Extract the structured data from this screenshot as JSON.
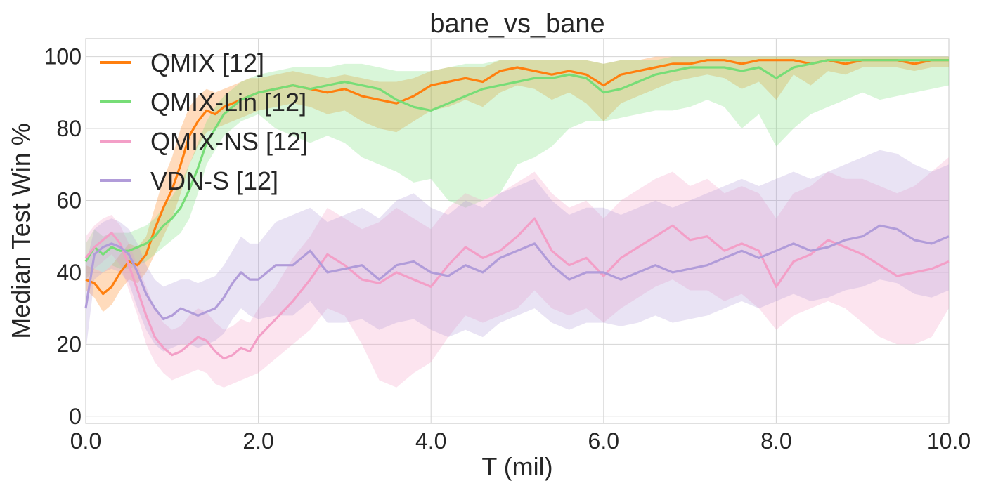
{
  "chart_data": {
    "type": "line",
    "title": "bane_vs_bane",
    "xlabel": "T (mil)",
    "ylabel": "Median Test Win %",
    "xlim": [
      0,
      10
    ],
    "ylim": [
      -2,
      105
    ],
    "xticks": [
      0,
      2,
      4,
      6,
      8,
      10
    ],
    "xtick_labels": [
      "0.0",
      "2.0",
      "4.0",
      "6.0",
      "8.0",
      "10.0"
    ],
    "yticks": [
      0,
      20,
      40,
      60,
      80,
      100
    ],
    "ytick_labels": [
      "0",
      "20",
      "40",
      "60",
      "80",
      "100"
    ],
    "grid": true,
    "legend_position": "top-left",
    "series": [
      {
        "name": "QMIX [12]",
        "color": "#ff7f0e",
        "x": [
          0,
          0.1,
          0.2,
          0.3,
          0.4,
          0.5,
          0.6,
          0.7,
          0.8,
          0.9,
          1.0,
          1.1,
          1.2,
          1.3,
          1.4,
          1.5,
          1.6,
          1.7,
          1.8,
          1.9,
          2.0,
          2.2,
          2.4,
          2.6,
          2.8,
          3.0,
          3.2,
          3.4,
          3.6,
          3.8,
          4.0,
          4.2,
          4.4,
          4.6,
          4.8,
          5.0,
          5.2,
          5.4,
          5.6,
          5.8,
          6.0,
          6.2,
          6.4,
          6.6,
          6.8,
          7.0,
          7.2,
          7.4,
          7.6,
          7.8,
          8.0,
          8.2,
          8.4,
          8.6,
          8.8,
          9.0,
          9.2,
          9.4,
          9.6,
          9.8,
          10.0
        ],
        "y": [
          38,
          37,
          34,
          36,
          40,
          43,
          42,
          45,
          52,
          58,
          63,
          70,
          78,
          82,
          85,
          84,
          86,
          87,
          88,
          89,
          90,
          91,
          92,
          91,
          90,
          91,
          89,
          88,
          87,
          89,
          92,
          93,
          94,
          93,
          96,
          97,
          96,
          95,
          96,
          95,
          92,
          95,
          96,
          97,
          98,
          98,
          99,
          99,
          98,
          99,
          99,
          99,
          98,
          99,
          98,
          99,
          99,
          99,
          98,
          99,
          99
        ],
        "lower": [
          35,
          33,
          29,
          31,
          35,
          38,
          37,
          40,
          45,
          50,
          55,
          62,
          70,
          75,
          79,
          80,
          81,
          82,
          83,
          84,
          85,
          86,
          87,
          86,
          84,
          85,
          82,
          80,
          79,
          82,
          85,
          86,
          88,
          86,
          90,
          92,
          91,
          88,
          90,
          87,
          82,
          87,
          89,
          91,
          93,
          94,
          95,
          94,
          91,
          93,
          88,
          95,
          92,
          96,
          95,
          97,
          97,
          97,
          96,
          97,
          97
        ],
        "upper": [
          42,
          41,
          40,
          42,
          45,
          48,
          47,
          50,
          58,
          66,
          72,
          80,
          86,
          89,
          91,
          90,
          91,
          92,
          93,
          94,
          94,
          95,
          96,
          95,
          94,
          95,
          94,
          93,
          93,
          94,
          96,
          97,
          97,
          97,
          99,
          99,
          99,
          99,
          99,
          99,
          98,
          99,
          99,
          100,
          100,
          100,
          100,
          100,
          100,
          100,
          100,
          100,
          100,
          100,
          100,
          100,
          100,
          100,
          100,
          100,
          100
        ]
      },
      {
        "name": "QMIX-Lin [12]",
        "color": "#77dd77",
        "x": [
          0,
          0.1,
          0.2,
          0.3,
          0.4,
          0.5,
          0.6,
          0.7,
          0.8,
          0.9,
          1.0,
          1.1,
          1.2,
          1.3,
          1.4,
          1.5,
          1.6,
          1.7,
          1.8,
          1.9,
          2.0,
          2.2,
          2.4,
          2.6,
          2.8,
          3.0,
          3.2,
          3.4,
          3.6,
          3.8,
          4.0,
          4.2,
          4.4,
          4.6,
          4.8,
          5.0,
          5.2,
          5.4,
          5.6,
          5.8,
          6.0,
          6.2,
          6.4,
          6.6,
          6.8,
          7.0,
          7.2,
          7.4,
          7.6,
          7.8,
          8.0,
          8.2,
          8.4,
          8.6,
          8.8,
          9.0,
          9.2,
          9.4,
          9.6,
          9.8,
          10.0
        ],
        "y": [
          43,
          47,
          45,
          47,
          46,
          46,
          47,
          48,
          50,
          53,
          55,
          58,
          63,
          69,
          76,
          80,
          84,
          86,
          88,
          89,
          90,
          91,
          92,
          91,
          92,
          93,
          92,
          91,
          88,
          86,
          85,
          87,
          89,
          91,
          92,
          93,
          94,
          94,
          95,
          94,
          90,
          91,
          93,
          95,
          96,
          97,
          97,
          97,
          96,
          97,
          94,
          97,
          98,
          99,
          99,
          99,
          99,
          99,
          99,
          99,
          99
        ],
        "lower": [
          38,
          41,
          40,
          42,
          41,
          41,
          42,
          43,
          45,
          47,
          49,
          51,
          55,
          62,
          70,
          74,
          78,
          80,
          82,
          83,
          84,
          80,
          78,
          76,
          78,
          76,
          72,
          70,
          68,
          65,
          66,
          60,
          58,
          60,
          62,
          70,
          72,
          75,
          80,
          82,
          82,
          83,
          84,
          85,
          85,
          86,
          88,
          86,
          80,
          84,
          75,
          80,
          84,
          86,
          88,
          90,
          88,
          89,
          90,
          91,
          92
        ],
        "upper": [
          48,
          52,
          50,
          51,
          51,
          51,
          52,
          53,
          55,
          58,
          61,
          65,
          70,
          76,
          82,
          86,
          89,
          91,
          93,
          94,
          95,
          96,
          97,
          97,
          97,
          98,
          98,
          97,
          96,
          96,
          96,
          97,
          98,
          98,
          99,
          99,
          99,
          99,
          99,
          99,
          98,
          99,
          99,
          99,
          100,
          100,
          100,
          100,
          100,
          100,
          100,
          100,
          100,
          100,
          100,
          100,
          100,
          100,
          100,
          100,
          100
        ]
      },
      {
        "name": "QMIX-NS [12]",
        "color": "#f39fc7",
        "x": [
          0,
          0.1,
          0.2,
          0.3,
          0.4,
          0.5,
          0.6,
          0.7,
          0.8,
          0.9,
          1.0,
          1.1,
          1.2,
          1.3,
          1.4,
          1.5,
          1.6,
          1.7,
          1.8,
          1.9,
          2.0,
          2.2,
          2.4,
          2.6,
          2.8,
          3.0,
          3.2,
          3.4,
          3.6,
          3.8,
          4.0,
          4.2,
          4.4,
          4.6,
          4.8,
          5.0,
          5.2,
          5.4,
          5.6,
          5.8,
          6.0,
          6.2,
          6.4,
          6.6,
          6.8,
          7.0,
          7.2,
          7.4,
          7.6,
          7.8,
          8.0,
          8.2,
          8.4,
          8.6,
          8.8,
          9.0,
          9.2,
          9.4,
          9.6,
          9.8,
          10.0
        ],
        "y": [
          44,
          47,
          49,
          51,
          48,
          42,
          35,
          28,
          22,
          19,
          17,
          18,
          20,
          22,
          21,
          18,
          16,
          17,
          19,
          18,
          22,
          27,
          32,
          38,
          45,
          42,
          38,
          37,
          40,
          38,
          36,
          42,
          47,
          44,
          46,
          50,
          55,
          46,
          42,
          44,
          39,
          44,
          47,
          50,
          53,
          49,
          50,
          46,
          48,
          46,
          36,
          43,
          45,
          49,
          47,
          45,
          42,
          39,
          40,
          41,
          43
        ],
        "lower": [
          38,
          41,
          43,
          45,
          42,
          35,
          28,
          20,
          15,
          12,
          10,
          11,
          12,
          13,
          12,
          9,
          8,
          9,
          10,
          11,
          12,
          16,
          20,
          24,
          30,
          28,
          20,
          10,
          8,
          12,
          15,
          22,
          28,
          26,
          28,
          30,
          35,
          30,
          28,
          30,
          26,
          30,
          33,
          36,
          38,
          35,
          35,
          32,
          34,
          30,
          24,
          28,
          30,
          32,
          30,
          26,
          22,
          20,
          20,
          22,
          30
        ],
        "upper": [
          50,
          53,
          55,
          56,
          53,
          48,
          42,
          36,
          30,
          26,
          24,
          25,
          28,
          30,
          29,
          26,
          24,
          25,
          27,
          26,
          30,
          36,
          44,
          50,
          58,
          55,
          52,
          54,
          58,
          55,
          52,
          58,
          62,
          60,
          62,
          65,
          68,
          62,
          58,
          60,
          55,
          60,
          63,
          66,
          68,
          64,
          66,
          62,
          64,
          62,
          55,
          62,
          64,
          68,
          66,
          66,
          64,
          62,
          64,
          68,
          72
        ]
      },
      {
        "name": "VDN-S [12]",
        "color": "#b19cd9",
        "x": [
          0,
          0.1,
          0.2,
          0.3,
          0.4,
          0.5,
          0.6,
          0.7,
          0.8,
          0.9,
          1.0,
          1.1,
          1.2,
          1.3,
          1.4,
          1.5,
          1.6,
          1.7,
          1.8,
          1.9,
          2.0,
          2.2,
          2.4,
          2.6,
          2.8,
          3.0,
          3.2,
          3.4,
          3.6,
          3.8,
          4.0,
          4.2,
          4.4,
          4.6,
          4.8,
          5.0,
          5.2,
          5.4,
          5.6,
          5.8,
          6.0,
          6.2,
          6.4,
          6.6,
          6.8,
          7.0,
          7.2,
          7.4,
          7.6,
          7.8,
          8.0,
          8.2,
          8.4,
          8.6,
          8.8,
          9.0,
          9.2,
          9.4,
          9.6,
          9.8,
          10.0
        ],
        "y": [
          30,
          45,
          47,
          48,
          47,
          45,
          40,
          34,
          30,
          27,
          28,
          30,
          29,
          28,
          29,
          30,
          33,
          37,
          40,
          38,
          38,
          42,
          42,
          46,
          40,
          41,
          42,
          38,
          42,
          43,
          40,
          39,
          42,
          40,
          44,
          46,
          48,
          42,
          38,
          40,
          40,
          38,
          40,
          42,
          40,
          41,
          42,
          44,
          46,
          44,
          46,
          48,
          46,
          47,
          49,
          50,
          53,
          52,
          49,
          48,
          50
        ],
        "lower": [
          18,
          38,
          40,
          41,
          40,
          37,
          30,
          24,
          20,
          18,
          19,
          20,
          20,
          19,
          20,
          21,
          23,
          27,
          30,
          28,
          27,
          28,
          28,
          32,
          26,
          26,
          27,
          24,
          26,
          27,
          24,
          22,
          24,
          22,
          26,
          28,
          30,
          26,
          24,
          26,
          26,
          25,
          26,
          28,
          26,
          27,
          28,
          30,
          32,
          30,
          32,
          34,
          32,
          33,
          35,
          36,
          38,
          37,
          34,
          33,
          35
        ],
        "upper": [
          42,
          52,
          54,
          55,
          54,
          52,
          48,
          42,
          38,
          36,
          37,
          38,
          38,
          37,
          38,
          39,
          42,
          46,
          50,
          48,
          48,
          54,
          56,
          58,
          54,
          56,
          58,
          55,
          60,
          62,
          58,
          56,
          60,
          58,
          62,
          64,
          66,
          60,
          56,
          58,
          58,
          56,
          58,
          60,
          58,
          60,
          62,
          64,
          66,
          64,
          66,
          68,
          66,
          68,
          70,
          72,
          74,
          73,
          70,
          68,
          70
        ]
      }
    ]
  }
}
